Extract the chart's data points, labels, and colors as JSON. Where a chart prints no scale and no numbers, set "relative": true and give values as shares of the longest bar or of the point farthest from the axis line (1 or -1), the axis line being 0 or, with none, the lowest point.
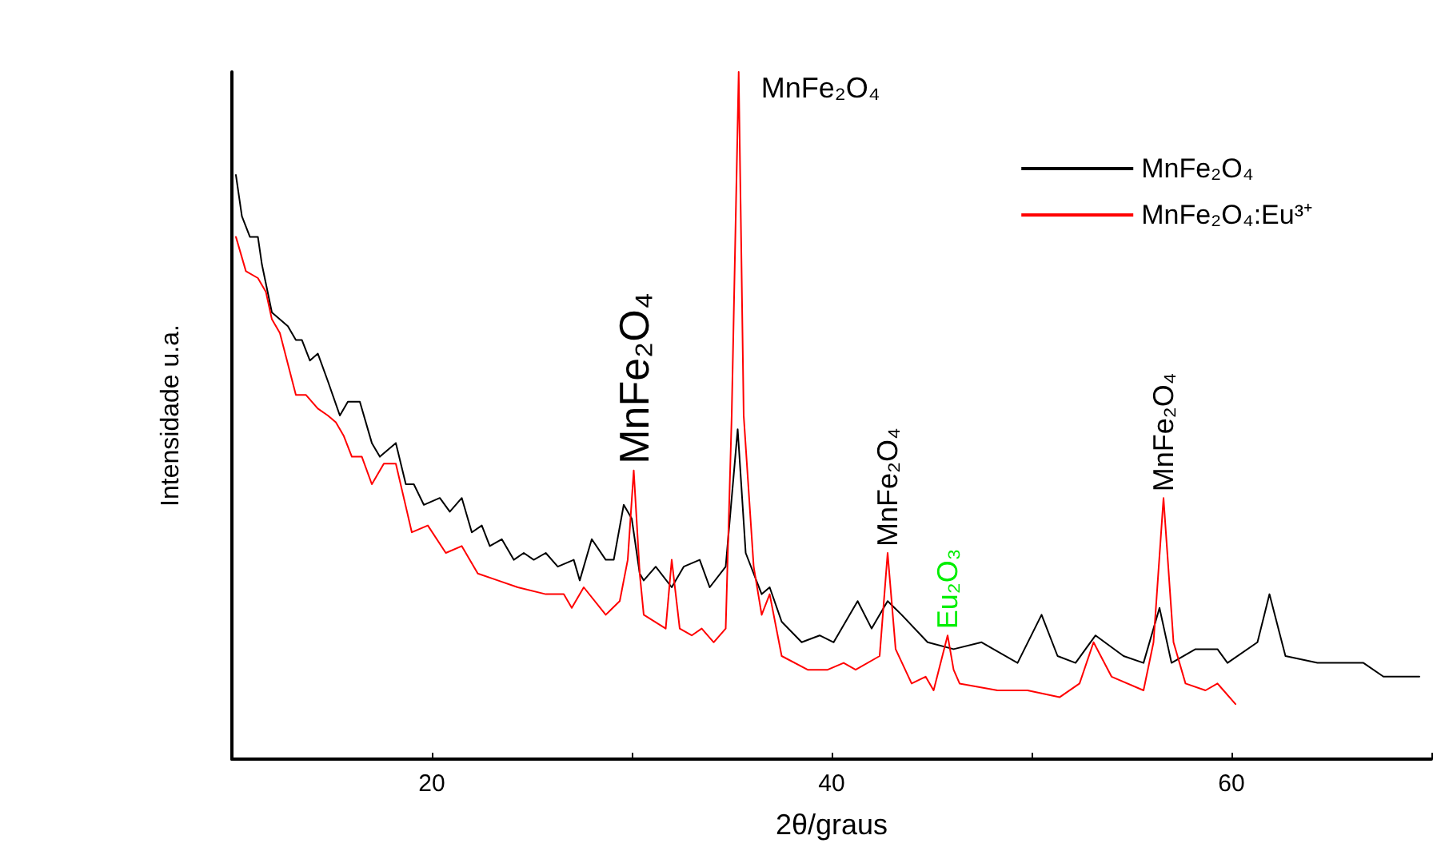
{
  "chart_data": {
    "type": "line",
    "relative": true,
    "xlabel": "2θ/graus",
    "ylabel": "Intensidade u.a.",
    "xlim": [
      10,
      70
    ],
    "xticks": [
      {
        "value": 10,
        "label": null
      },
      20,
      {
        "value": 30,
        "label": null
      },
      40,
      {
        "value": 50,
        "label": null
      },
      60,
      {
        "value": 70,
        "label": null
      }
    ],
    "legend": "top right",
    "grid": false,
    "marker": "none",
    "line_style": "solid",
    "annotations": [
      {
        "text": "MnFe₂O₄",
        "x": 35.35,
        "y": 1
      },
      {
        "text": "MnFe₂O₄",
        "x": 30.1,
        "y": 0.42
      },
      {
        "text": "MnFe₂O₄",
        "x": 42.8,
        "y": 0.3
      },
      {
        "text": "Eu₂O₃",
        "x": 45.8,
        "y": 0.18
      },
      {
        "text": "MnFe₂O₄",
        "x": 56.6,
        "y": 0.38
      }
    ],
    "series": [
      {
        "name": "MnFe₂O₄",
        "color": "#000000",
        "x": [
          10.2,
          10.5,
          10.9,
          11.3,
          11.5,
          12.0,
          12.8,
          13.2,
          13.5,
          13.9,
          14.3,
          14.8,
          15.4,
          15.8,
          16.4,
          17.0,
          17.4,
          17.8,
          18.2,
          18.7,
          19.1,
          19.6,
          20.4,
          20.9,
          21.5,
          22.0,
          22.5,
          22.9,
          23.5,
          24.1,
          24.6,
          25.1,
          25.7,
          26.3,
          27.1,
          27.4,
          28.0,
          28.7,
          29.1,
          29.6,
          30.0,
          30.4,
          30.6,
          31.2,
          32.0,
          32.6,
          33.4,
          33.9,
          34.7,
          35.3,
          35.7,
          36.5,
          36.9,
          37.5,
          38.5,
          39.4,
          40.1,
          41.3,
          42.0,
          42.8,
          43.5,
          44.8,
          46.1,
          47.5,
          49.3,
          50.5,
          51.3,
          52.2,
          53.2,
          54.6,
          55.6,
          56.4,
          57.0,
          58.2,
          59.3,
          59.8,
          61.3,
          61.9,
          62.7,
          64.3,
          66.6,
          67.6,
          69.4
        ],
        "values": [
          0.85,
          0.79,
          0.76,
          0.76,
          0.72,
          0.65,
          0.63,
          0.61,
          0.61,
          0.58,
          0.59,
          0.55,
          0.5,
          0.52,
          0.52,
          0.46,
          0.44,
          0.45,
          0.46,
          0.4,
          0.4,
          0.37,
          0.38,
          0.36,
          0.38,
          0.33,
          0.34,
          0.31,
          0.32,
          0.29,
          0.3,
          0.29,
          0.3,
          0.28,
          0.29,
          0.26,
          0.32,
          0.29,
          0.29,
          0.37,
          0.35,
          0.27,
          0.26,
          0.28,
          0.25,
          0.28,
          0.29,
          0.25,
          0.28,
          0.48,
          0.3,
          0.24,
          0.25,
          0.2,
          0.17,
          0.18,
          0.17,
          0.23,
          0.19,
          0.23,
          0.21,
          0.17,
          0.16,
          0.17,
          0.14,
          0.21,
          0.15,
          0.14,
          0.18,
          0.15,
          0.14,
          0.22,
          0.14,
          0.16,
          0.16,
          0.14,
          0.17,
          0.24,
          0.15,
          0.14,
          0.14,
          0.12,
          0.12
        ]
      },
      {
        "name": "MnFe₂O₄:Eu³⁺",
        "color": "#ff0000",
        "x": [
          10.2,
          10.7,
          11.3,
          11.7,
          12.0,
          12.4,
          13.2,
          13.7,
          14.3,
          14.8,
          15.2,
          15.6,
          16.0,
          16.5,
          17.0,
          17.6,
          18.2,
          19.0,
          19.8,
          20.7,
          21.5,
          22.3,
          23.3,
          24.3,
          25.7,
          26.6,
          27.0,
          27.6,
          28.7,
          29.4,
          29.8,
          30.1,
          30.4,
          30.6,
          31.7,
          32.0,
          32.4,
          33.0,
          33.5,
          34.1,
          34.7,
          35.0,
          35.35,
          35.6,
          36.1,
          36.5,
          36.9,
          37.5,
          38.8,
          39.8,
          40.6,
          41.2,
          42.4,
          42.8,
          43.2,
          44.0,
          44.7,
          45.1,
          45.8,
          46.1,
          46.4,
          48.3,
          49.8,
          51.4,
          52.4,
          53.1,
          54.0,
          55.6,
          56.1,
          56.6,
          57.1,
          57.7,
          58.7,
          59.3,
          60.2
        ],
        "values": [
          0.76,
          0.71,
          0.7,
          0.68,
          0.64,
          0.62,
          0.53,
          0.53,
          0.51,
          0.5,
          0.49,
          0.47,
          0.44,
          0.44,
          0.4,
          0.43,
          0.43,
          0.33,
          0.34,
          0.3,
          0.31,
          0.27,
          0.26,
          0.25,
          0.24,
          0.24,
          0.22,
          0.25,
          0.21,
          0.23,
          0.29,
          0.42,
          0.27,
          0.21,
          0.19,
          0.29,
          0.19,
          0.18,
          0.19,
          0.17,
          0.19,
          0.5,
          1,
          0.5,
          0.28,
          0.21,
          0.24,
          0.15,
          0.13,
          0.13,
          0.14,
          0.13,
          0.15,
          0.3,
          0.16,
          0.11,
          0.12,
          0.1,
          0.18,
          0.13,
          0.11,
          0.1,
          0.1,
          0.09,
          0.11,
          0.17,
          0.12,
          0.1,
          0.17,
          0.38,
          0.17,
          0.11,
          0.1,
          0.11,
          0.08
        ]
      }
    ]
  }
}
